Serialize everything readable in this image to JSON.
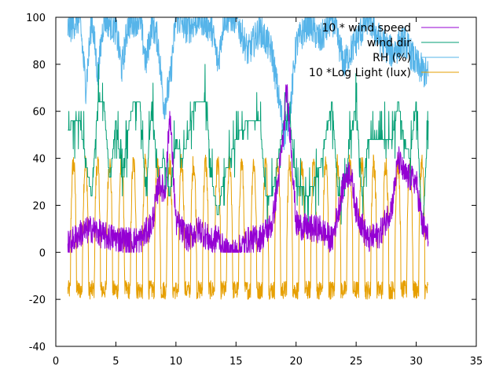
{
  "chart_data": {
    "type": "line",
    "title": "",
    "xlabel": "",
    "ylabel": "",
    "xlim": [
      0,
      35
    ],
    "ylim": [
      -40,
      100
    ],
    "x_ticks": [
      "0",
      "5",
      "10",
      "15",
      "20",
      "25",
      "30",
      "35"
    ],
    "y_ticks": [
      "-40",
      "-20",
      "0",
      "20",
      "40",
      "60",
      "80",
      "100"
    ],
    "grid": false,
    "legend_position": "top-right",
    "x_range": [
      1,
      31
    ],
    "series": [
      {
        "name": "10 * wind speed",
        "color": "#9400d3",
        "approx_points": [
          [
            1,
            3
          ],
          [
            2,
            8
          ],
          [
            3,
            10
          ],
          [
            4,
            7
          ],
          [
            5,
            6
          ],
          [
            6,
            5
          ],
          [
            7,
            5
          ],
          [
            8,
            12
          ],
          [
            8.6,
            30
          ],
          [
            9.1,
            25
          ],
          [
            9.5,
            60
          ],
          [
            10,
            13
          ],
          [
            11,
            6
          ],
          [
            12,
            10
          ],
          [
            13,
            4
          ],
          [
            13.5,
            7
          ],
          [
            14,
            0
          ],
          [
            15,
            0
          ],
          [
            16,
            5
          ],
          [
            17,
            6
          ],
          [
            18,
            12
          ],
          [
            18.5,
            30
          ],
          [
            19,
            52
          ],
          [
            19.2,
            70
          ],
          [
            19.6,
            45
          ],
          [
            20,
            12
          ],
          [
            21,
            10
          ],
          [
            22,
            10
          ],
          [
            23,
            5
          ],
          [
            24,
            30
          ],
          [
            24.5,
            35
          ],
          [
            25,
            18
          ],
          [
            26,
            5
          ],
          [
            27,
            8
          ],
          [
            28,
            20
          ],
          [
            28.5,
            40
          ],
          [
            29,
            33
          ],
          [
            30,
            30
          ],
          [
            30.5,
            12
          ],
          [
            31,
            6
          ]
        ]
      },
      {
        "name": "wind dir",
        "color": "#009e73",
        "approx_points": [
          [
            1,
            52
          ],
          [
            1.5,
            56
          ],
          [
            2,
            56
          ],
          [
            2.6,
            35
          ],
          [
            3,
            24
          ],
          [
            3.5,
            64
          ],
          [
            4,
            64
          ],
          [
            4.5,
            30
          ],
          [
            5,
            56
          ],
          [
            5.5,
            32
          ],
          [
            6,
            52
          ],
          [
            6.5,
            64
          ],
          [
            7,
            64
          ],
          [
            7.5,
            24
          ],
          [
            8,
            64
          ],
          [
            8.5,
            32
          ],
          [
            9,
            40
          ],
          [
            9.5,
            24
          ],
          [
            10,
            48
          ],
          [
            10.5,
            40
          ],
          [
            11,
            48
          ],
          [
            11.5,
            64
          ],
          [
            12,
            64
          ],
          [
            12.5,
            64
          ],
          [
            13,
            30
          ],
          [
            13.5,
            16
          ],
          [
            14,
            32
          ],
          [
            15,
            48
          ],
          [
            16,
            56
          ],
          [
            17,
            56
          ],
          [
            17.5,
            22
          ],
          [
            18,
            24
          ],
          [
            18.5,
            40
          ],
          [
            19,
            56
          ],
          [
            19.5,
            56
          ],
          [
            20,
            30
          ],
          [
            21,
            24
          ],
          [
            22,
            36
          ],
          [
            23,
            64
          ],
          [
            23.5,
            24
          ],
          [
            24,
            24
          ],
          [
            24.5,
            48
          ],
          [
            25,
            64
          ],
          [
            25.5,
            24
          ],
          [
            26,
            48
          ],
          [
            27,
            48
          ],
          [
            28,
            48
          ],
          [
            28.5,
            64
          ],
          [
            29,
            48
          ],
          [
            29.5,
            40
          ],
          [
            30,
            64
          ],
          [
            30.5,
            6
          ],
          [
            31,
            56
          ]
        ]
      },
      {
        "name": "RH (%)",
        "color": "#56b4e9",
        "approx_points": [
          [
            1,
            95
          ],
          [
            2,
            100
          ],
          [
            2.5,
            70
          ],
          [
            3,
            100
          ],
          [
            3.5,
            75
          ],
          [
            4,
            100
          ],
          [
            5,
            95
          ],
          [
            5.5,
            78
          ],
          [
            6,
            97
          ],
          [
            7,
            100
          ],
          [
            7.5,
            80
          ],
          [
            8,
            98
          ],
          [
            8.5,
            90
          ],
          [
            9,
            62
          ],
          [
            9.5,
            72
          ],
          [
            10,
            100
          ],
          [
            11,
            95
          ],
          [
            12,
            100
          ],
          [
            13,
            95
          ],
          [
            13.5,
            80
          ],
          [
            14,
            100
          ],
          [
            15,
            100
          ],
          [
            16,
            85
          ],
          [
            17,
            95
          ],
          [
            18,
            85
          ],
          [
            19,
            50
          ],
          [
            19.5,
            60
          ],
          [
            20,
            88
          ],
          [
            21,
            98
          ],
          [
            22,
            90
          ],
          [
            23,
            100
          ],
          [
            24,
            80
          ],
          [
            25,
            90
          ],
          [
            26,
            100
          ],
          [
            27,
            90
          ],
          [
            28,
            85
          ],
          [
            29,
            90
          ],
          [
            30,
            80
          ],
          [
            31,
            75
          ]
        ]
      },
      {
        "name": "10 *Log Light (lux)",
        "color": "#e69f00",
        "amplitude_range": [
          -22,
          40
        ]
      }
    ]
  }
}
